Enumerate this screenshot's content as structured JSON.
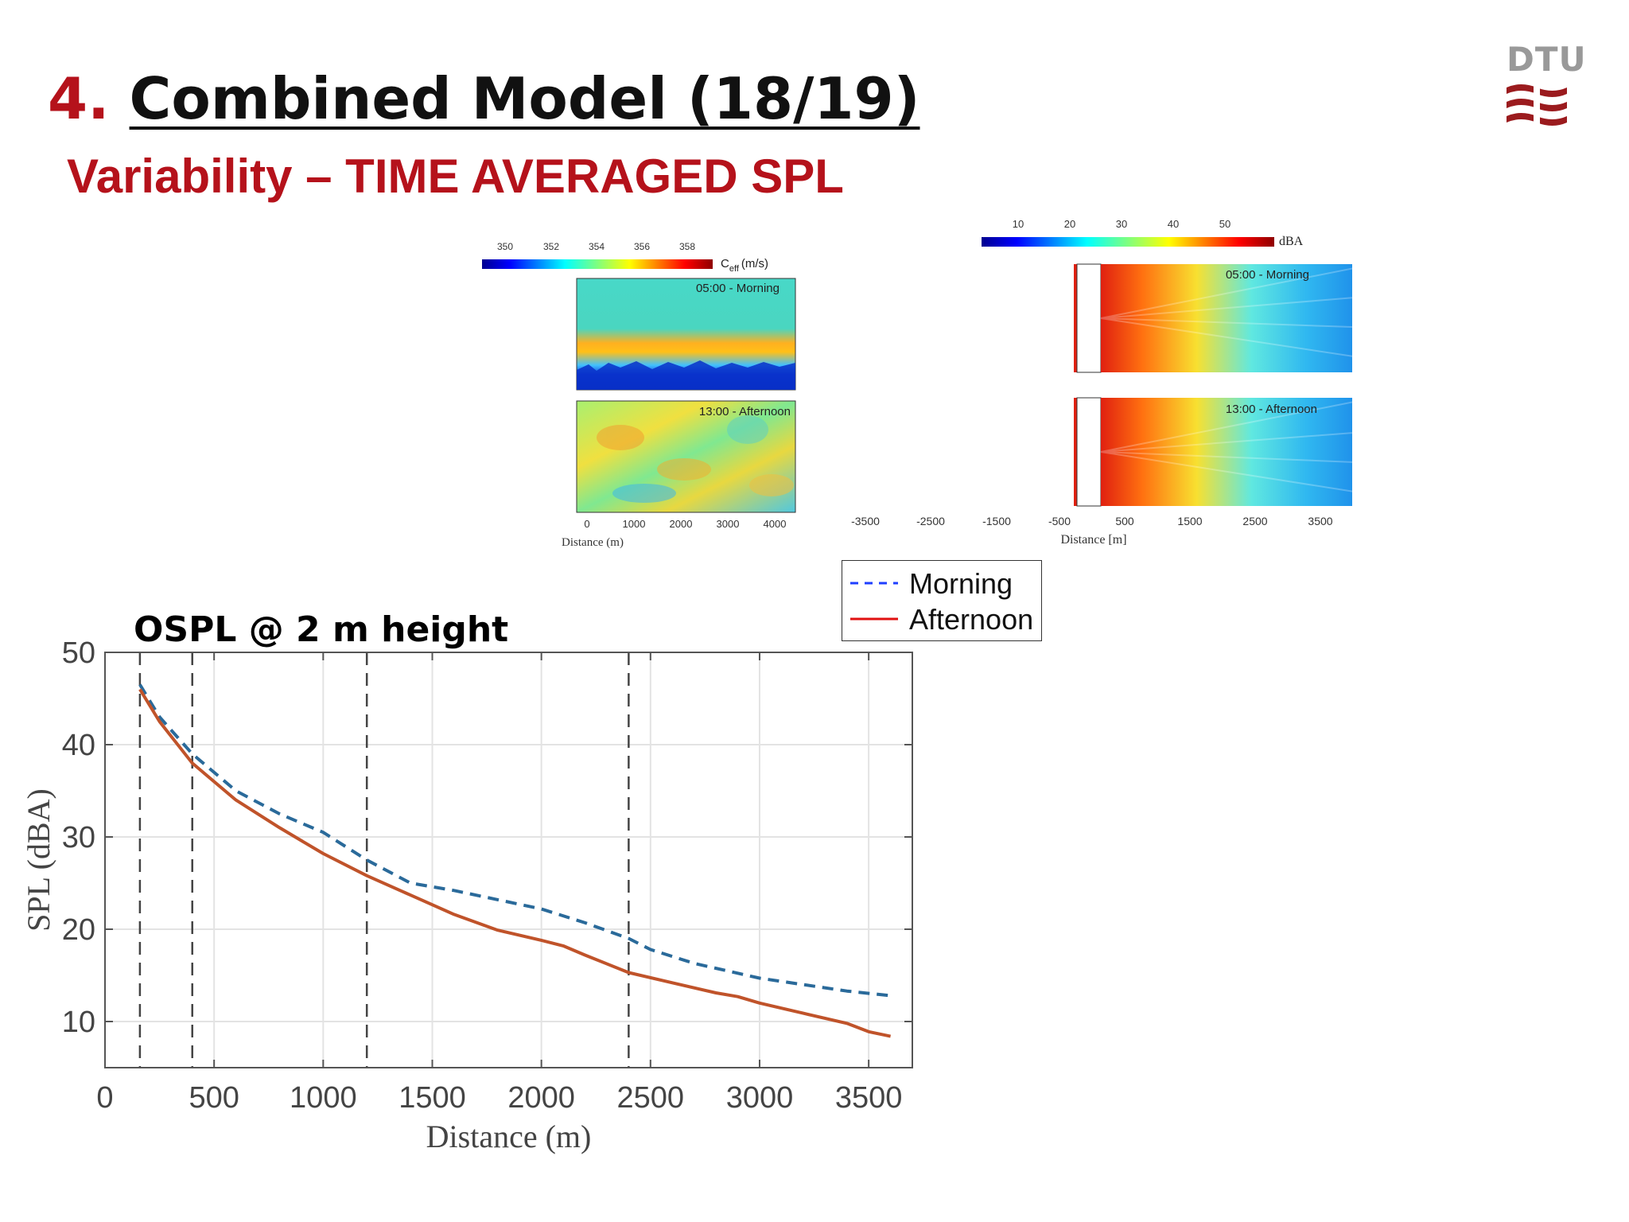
{
  "slide": {
    "title_number": "4.",
    "title_text": "Combined Model (18/19)",
    "subtitle": "Variability – TIME AVERAGED SPL",
    "logo_text": "DTU",
    "ospl_label": "OSPL @ 2 m height"
  },
  "colors": {
    "accent_red": "#b5121b",
    "morning": "#2a6a9a",
    "afternoon": "#c0532a",
    "legend_morning": "#1f3fff",
    "legend_afternoon": "#e01010"
  },
  "chart_data": [
    {
      "type": "heatmap",
      "colorbar": {
        "ticks": [
          "350",
          "352",
          "354",
          "356",
          "358"
        ],
        "label": "C",
        "label_sub": "eff",
        "label_unit": "(m/s)"
      },
      "panels": [
        {
          "label": "05:00 - Morning"
        },
        {
          "label": "13:00 - Afternoon"
        }
      ],
      "xticks": [
        "0",
        "1000",
        "2000",
        "3000",
        "4000"
      ],
      "xlabel": "Distance (m)"
    },
    {
      "type": "heatmap",
      "colorbar": {
        "ticks": [
          "10",
          "20",
          "30",
          "40",
          "50"
        ],
        "label": "dBA"
      },
      "panels": [
        {
          "label": "05:00 - Morning"
        },
        {
          "label": "13:00 - Afternoon"
        }
      ],
      "xticks": [
        "-3500",
        "-2500",
        "-1500",
        "-500",
        "500",
        "1500",
        "2500",
        "3500"
      ],
      "xlabel": "Distance [m]"
    },
    {
      "type": "line",
      "xlabel": "Distance (m)",
      "ylabel": "SPL (dBA)",
      "xlim": [
        0,
        3700
      ],
      "ylim": [
        5,
        50
      ],
      "xticks": [
        0,
        500,
        1000,
        1500,
        2000,
        2500,
        3000,
        3500
      ],
      "yticks": [
        10,
        20,
        30,
        40,
        50
      ],
      "grid": true,
      "vlines": [
        160,
        400,
        1200,
        2400
      ],
      "legend": {
        "placement": "above-right",
        "entries": [
          "Morning",
          "Afternoon"
        ]
      },
      "series": [
        {
          "name": "Morning",
          "style": "dashed",
          "x": [
            160,
            250,
            400,
            600,
            800,
            1000,
            1200,
            1400,
            1600,
            1800,
            2000,
            2200,
            2400,
            2500,
            2700,
            3000,
            3200,
            3400,
            3600
          ],
          "y": [
            46.5,
            43,
            39,
            35,
            32.5,
            30.5,
            27.5,
            25,
            24.2,
            23.2,
            22.2,
            20.7,
            19,
            17.8,
            16.3,
            14.7,
            14,
            13.3,
            12.8
          ]
        },
        {
          "name": "Afternoon",
          "style": "solid",
          "x": [
            160,
            250,
            400,
            600,
            800,
            1000,
            1200,
            1400,
            1600,
            1800,
            2000,
            2100,
            2200,
            2400,
            2600,
            2800,
            2900,
            3000,
            3200,
            3400,
            3500,
            3600
          ],
          "y": [
            46,
            42.5,
            38,
            34,
            31,
            28.2,
            25.8,
            23.7,
            21.6,
            19.9,
            18.8,
            18.2,
            17.2,
            15.3,
            14.2,
            13.1,
            12.7,
            12,
            10.9,
            9.8,
            8.9,
            8.4
          ]
        }
      ]
    }
  ]
}
